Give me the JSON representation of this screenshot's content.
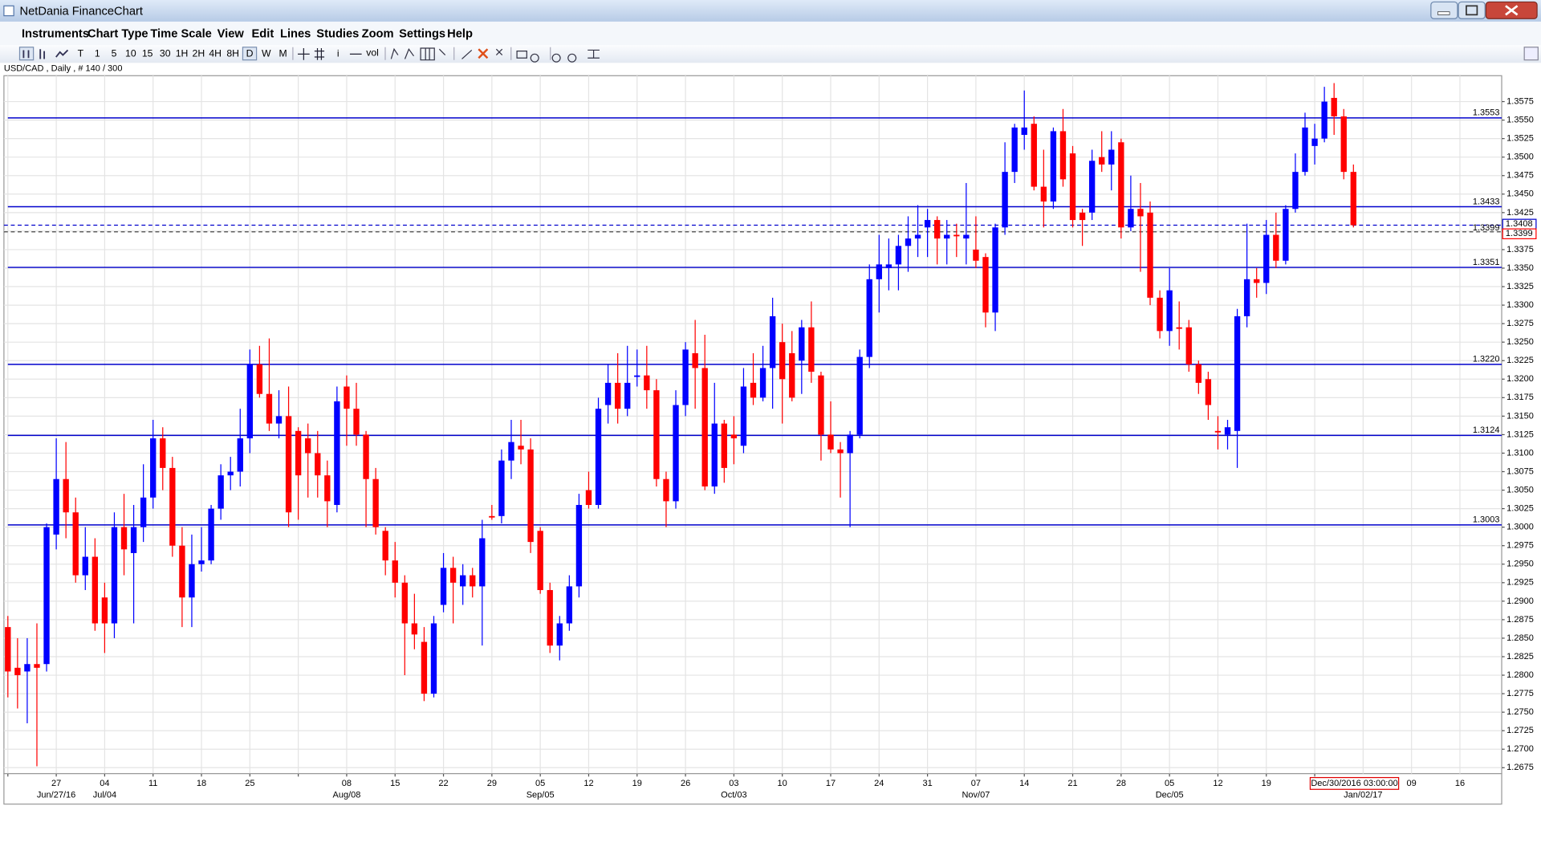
{
  "window": {
    "title": "NetDania FinanceChart"
  },
  "menu": [
    "Instruments",
    "Chart Type",
    "Time Scale",
    "View",
    "Edit",
    "Lines",
    "Studies",
    "Zoom",
    "Settings",
    "Help"
  ],
  "toolbar": {
    "periods": [
      "T",
      "1",
      "5",
      "10",
      "15",
      "30",
      "1H",
      "2H",
      "4H",
      "8H",
      "D",
      "W",
      "M"
    ],
    "info_button": "i",
    "volume_button": "vol"
  },
  "info": "USD/CAD , Daily , # 140 / 300",
  "cursor_label": "Dec/30/2016 03:00:00",
  "chart_data": {
    "type": "candlestick",
    "up_color": "#0000ff",
    "down_color": "#ff0000",
    "level_color": "#0000cc",
    "grid": true,
    "categories": [
      null,
      null,
      null,
      null,
      null,
      "27",
      null,
      null,
      null,
      null,
      "04",
      null,
      null,
      null,
      null,
      "11",
      null,
      null,
      null,
      null,
      "18",
      null,
      null,
      null,
      null,
      "25",
      null,
      null,
      null,
      null,
      null,
      null,
      null,
      null,
      null,
      "08",
      null,
      null,
      null,
      null,
      "15",
      null,
      null,
      null,
      null,
      "22",
      null,
      null,
      null,
      null,
      "29",
      null,
      null,
      null,
      null,
      "05",
      null,
      null,
      null,
      null,
      "12",
      null,
      null,
      null,
      null,
      "19",
      null,
      null,
      null,
      null,
      "26",
      null,
      null,
      null,
      null,
      "03",
      null,
      null,
      null,
      null,
      "10",
      null,
      null,
      null,
      null,
      "17",
      null,
      null,
      null,
      null,
      "24",
      null,
      null,
      null,
      null,
      "31",
      null,
      null,
      null,
      null,
      "07",
      null,
      null,
      null,
      null,
      "14",
      null,
      null,
      null,
      null,
      "21",
      null,
      null,
      null,
      null,
      "28",
      null,
      null,
      null,
      null,
      "05",
      null,
      null,
      null,
      null,
      "12",
      null,
      null,
      null,
      null,
      "19",
      null,
      null,
      null,
      null,
      null,
      null,
      null,
      null,
      null
    ],
    "sub_categories": [
      null,
      null,
      null,
      null,
      null,
      "Jun/27/16",
      null,
      null,
      null,
      null,
      "Jul/04",
      null,
      null,
      null,
      null,
      null,
      null,
      null,
      null,
      null,
      null,
      null,
      null,
      null,
      null,
      null,
      null,
      null,
      null,
      null,
      null,
      null,
      null,
      null,
      null,
      "Aug/08",
      null,
      null,
      null,
      null,
      null,
      null,
      null,
      null,
      null,
      null,
      null,
      null,
      null,
      null,
      null,
      null,
      null,
      null,
      null,
      "Sep/05",
      null,
      null,
      null,
      null,
      null,
      null,
      null,
      null,
      null,
      null,
      null,
      null,
      null,
      null,
      null,
      null,
      null,
      null,
      null,
      "Oct/03",
      null,
      null,
      null,
      null,
      null,
      null,
      null,
      null,
      null,
      null,
      null,
      null,
      null,
      null,
      null,
      null,
      null,
      null,
      null,
      null,
      null,
      null,
      null,
      null,
      "Nov/07",
      null,
      null,
      null,
      null,
      null,
      null,
      null,
      null,
      null,
      null,
      null,
      null,
      null,
      null,
      null,
      null,
      null,
      null,
      null,
      "Dec/05",
      null,
      null,
      null,
      null,
      null,
      null,
      null,
      null,
      null,
      null,
      null,
      null,
      null,
      null,
      null,
      null,
      null,
      null,
      null
    ],
    "axis_extension": {
      "sub_label": "Jan/02/17",
      "ticks": [
        "09",
        "16"
      ]
    },
    "open": [
      1.2865,
      1.281,
      1.2805,
      1.2815,
      1.2815,
      1.299,
      1.3065,
      1.302,
      1.2935,
      1.296,
      1.2905,
      1.287,
      1.3,
      1.2965,
      1.3,
      1.304,
      1.312,
      1.308,
      1.2975,
      1.2905,
      1.295,
      1.2955,
      1.3025,
      1.307,
      1.3075,
      1.312,
      1.322,
      1.318,
      1.314,
      1.315,
      1.313,
      1.312,
      1.31,
      1.307,
      1.303,
      1.319,
      1.316,
      1.3125,
      1.3065,
      1.2995,
      1.2955,
      1.2925,
      1.287,
      1.2845,
      1.2775,
      1.2895,
      1.2945,
      1.292,
      1.2935,
      1.292,
      1.3015,
      1.3015,
      1.309,
      1.311,
      1.3105,
      1.2995,
      1.2915,
      1.284,
      1.287,
      1.292,
      1.305,
      1.303,
      1.3165,
      1.3195,
      1.316,
      1.3205,
      1.3205,
      1.3185,
      1.3065,
      1.3035,
      1.3165,
      1.3235,
      1.3215,
      1.3055,
      1.314,
      1.3125,
      1.311,
      1.3195,
      1.3175,
      1.3215,
      1.325,
      1.3235,
      1.3225,
      1.327,
      1.3205,
      1.3125,
      1.3105,
      1.31,
      1.3125,
      1.323,
      1.3335,
      1.335,
      1.3355,
      1.338,
      1.339,
      1.3405,
      1.3415,
      1.339,
      1.3395,
      1.339,
      1.3375,
      1.3365,
      1.329,
      1.3405,
      1.348,
      1.353,
      1.3545,
      1.346,
      1.344,
      1.3535,
      1.3505,
      1.3425,
      1.3425,
      1.35,
      1.349,
      1.352,
      1.3405,
      1.343,
      1.3425,
      1.331,
      1.3265,
      1.327,
      1.327,
      1.322,
      1.32,
      1.313,
      1.3125,
      1.313,
      1.3285,
      1.3335,
      1.333,
      1.3395,
      1.336,
      1.343,
      1.348,
      1.3515,
      1.3525,
      1.358,
      1.3555,
      1.348
    ],
    "high": [
      1.288,
      1.285,
      1.285,
      1.287,
      1.3005,
      1.312,
      1.3115,
      1.304,
      1.3,
      1.2985,
      1.2925,
      1.302,
      1.3045,
      1.303,
      1.3085,
      1.3145,
      1.3135,
      1.3095,
      1.3,
      1.299,
      1.3,
      1.303,
      1.3085,
      1.3095,
      1.316,
      1.324,
      1.3245,
      1.3255,
      1.3185,
      1.319,
      1.3135,
      1.314,
      1.313,
      1.309,
      1.319,
      1.3205,
      1.3195,
      1.313,
      1.308,
      1.3,
      1.298,
      1.2935,
      1.291,
      1.2865,
      1.288,
      1.2965,
      1.296,
      1.295,
      1.2945,
      1.301,
      1.303,
      1.3105,
      1.3145,
      1.3145,
      1.312,
      1.3,
      1.2925,
      1.288,
      1.2935,
      1.3045,
      1.3075,
      1.3175,
      1.322,
      1.3235,
      1.3245,
      1.324,
      1.3245,
      1.32,
      1.3075,
      1.3185,
      1.325,
      1.328,
      1.326,
      1.3195,
      1.3145,
      1.315,
      1.3215,
      1.3235,
      1.3245,
      1.331,
      1.3275,
      1.3265,
      1.328,
      1.3305,
      1.321,
      1.317,
      1.3115,
      1.313,
      1.324,
      1.3355,
      1.3395,
      1.339,
      1.3395,
      1.342,
      1.3435,
      1.343,
      1.342,
      1.3415,
      1.341,
      1.3465,
      1.342,
      1.337,
      1.341,
      1.352,
      1.3545,
      1.359,
      1.3555,
      1.351,
      1.354,
      1.3565,
      1.3515,
      1.343,
      1.351,
      1.3535,
      1.3535,
      1.3525,
      1.3475,
      1.3465,
      1.344,
      1.332,
      1.335,
      1.3305,
      1.328,
      1.3225,
      1.321,
      1.315,
      1.3145,
      1.3295,
      1.341,
      1.335,
      1.3415,
      1.3425,
      1.3435,
      1.3505,
      1.356,
      1.3545,
      1.3595,
      1.36,
      1.3565,
      1.349
    ],
    "low": [
      1.277,
      1.2755,
      1.2735,
      1.2677,
      1.2805,
      1.297,
      1.2985,
      1.2925,
      1.2915,
      1.286,
      1.283,
      1.285,
      1.2935,
      1.287,
      1.298,
      1.3025,
      1.305,
      1.296,
      1.2865,
      1.2865,
      1.294,
      1.295,
      1.301,
      1.305,
      1.3055,
      1.31,
      1.3175,
      1.313,
      1.312,
      1.3,
      1.301,
      1.304,
      1.304,
      1.3,
      1.302,
      1.311,
      1.311,
      1.3,
      1.299,
      1.2935,
      1.2905,
      1.28,
      1.2835,
      1.2765,
      1.277,
      1.2885,
      1.287,
      1.2895,
      1.2905,
      1.284,
      1.301,
      1.3005,
      1.3065,
      1.3085,
      1.2965,
      1.291,
      1.283,
      1.282,
      1.286,
      1.2905,
      1.3025,
      1.3025,
      1.314,
      1.314,
      1.315,
      1.319,
      1.316,
      1.3055,
      1.3,
      1.3025,
      1.315,
      1.316,
      1.305,
      1.3045,
      1.306,
      1.3085,
      1.31,
      1.3165,
      1.317,
      1.316,
      1.314,
      1.317,
      1.318,
      1.3195,
      1.309,
      1.31,
      1.304,
      1.3,
      1.312,
      1.3215,
      1.329,
      1.332,
      1.332,
      1.3345,
      1.3365,
      1.3365,
      1.3355,
      1.3355,
      1.3365,
      1.3355,
      1.335,
      1.327,
      1.3265,
      1.3395,
      1.3465,
      1.351,
      1.3455,
      1.3405,
      1.343,
      1.346,
      1.3405,
      1.338,
      1.3415,
      1.348,
      1.3455,
      1.339,
      1.34,
      1.3345,
      1.33,
      1.3255,
      1.3245,
      1.324,
      1.321,
      1.318,
      1.3145,
      1.3105,
      1.3105,
      1.308,
      1.327,
      1.331,
      1.3315,
      1.335,
      1.3355,
      1.3425,
      1.3475,
      1.349,
      1.352,
      1.353,
      1.347,
      1.3405
    ],
    "close": [
      1.2805,
      1.28,
      1.2815,
      1.281,
      1.3,
      1.3065,
      1.302,
      1.2935,
      1.296,
      1.287,
      1.287,
      1.3,
      1.297,
      1.3,
      1.304,
      1.312,
      1.308,
      1.2975,
      1.2905,
      1.295,
      1.2955,
      1.3025,
      1.307,
      1.3075,
      1.312,
      1.322,
      1.318,
      1.314,
      1.315,
      1.302,
      1.307,
      1.31,
      1.307,
      1.3035,
      1.317,
      1.316,
      1.3125,
      1.3065,
      1.3,
      1.2955,
      1.2925,
      1.287,
      1.2855,
      1.2775,
      1.287,
      1.2945,
      1.2925,
      1.2935,
      1.292,
      1.2985,
      1.3013,
      1.309,
      1.3115,
      1.3105,
      1.298,
      1.2915,
      1.284,
      1.287,
      1.292,
      1.303,
      1.303,
      1.316,
      1.3195,
      1.316,
      1.3195,
      1.3205,
      1.3185,
      1.3065,
      1.3035,
      1.3165,
      1.324,
      1.3215,
      1.3055,
      1.314,
      1.308,
      1.312,
      1.319,
      1.3175,
      1.3215,
      1.3285,
      1.32,
      1.3175,
      1.327,
      1.321,
      1.3125,
      1.3105,
      1.31,
      1.3125,
      1.323,
      1.3335,
      1.3355,
      1.3355,
      1.338,
      1.339,
      1.3395,
      1.3415,
      1.339,
      1.3395,
      1.3393,
      1.3395,
      1.336,
      1.329,
      1.3405,
      1.348,
      1.354,
      1.354,
      1.346,
      1.344,
      1.3535,
      1.347,
      1.3415,
      1.3415,
      1.3495,
      1.349,
      1.351,
      1.3405,
      1.343,
      1.342,
      1.331,
      1.3265,
      1.332,
      1.3268,
      1.322,
      1.3195,
      1.3165,
      1.3128,
      1.3135,
      1.3285,
      1.3335,
      1.333,
      1.3395,
      1.336,
      1.343,
      1.348,
      1.354,
      1.3525,
      1.3575,
      1.3555,
      1.348,
      1.3408
    ],
    "levels": [
      1.3553,
      1.3433,
      1.3351,
      {
        "value": 1.322,
        "label": "1.3220"
      },
      1.3124,
      1.3003
    ],
    "ref_price": 1.3399,
    "ylim": [
      1.2667,
      1.361
    ],
    "yticks": [
      1.2675,
      {
        "value": 1.27,
        "label": "1.2700"
      },
      1.2725,
      {
        "value": 1.275,
        "label": "1.2750"
      },
      1.2775,
      {
        "value": 1.28,
        "label": "1.2800"
      },
      1.2825,
      {
        "value": 1.285,
        "label": "1.2850"
      },
      1.2875,
      {
        "value": 1.29,
        "label": "1.2900"
      },
      1.2925,
      {
        "value": 1.295,
        "label": "1.2950"
      },
      1.2975,
      {
        "value": 1.3,
        "label": "1.3000"
      },
      1.3025,
      {
        "value": 1.305,
        "label": "1.3050"
      },
      1.3075,
      {
        "value": 1.31,
        "label": "1.3100"
      },
      1.3125,
      {
        "value": 1.315,
        "label": "1.3150"
      },
      1.3175,
      {
        "value": 1.32,
        "label": "1.3200"
      },
      1.3225,
      {
        "value": 1.325,
        "label": "1.3250"
      },
      1.3275,
      {
        "value": 1.33,
        "label": "1.3300"
      },
      1.3325,
      {
        "value": 1.335,
        "label": "1.3350"
      },
      1.3375,
      {
        "value": 1.34,
        "label": "1.3400"
      },
      1.3425,
      {
        "value": 1.345,
        "label": "1.3450"
      },
      1.3475,
      {
        "value": 1.35,
        "label": "1.3500"
      },
      1.3525,
      {
        "value": 1.355,
        "label": "1.3550"
      },
      1.3575
    ]
  }
}
